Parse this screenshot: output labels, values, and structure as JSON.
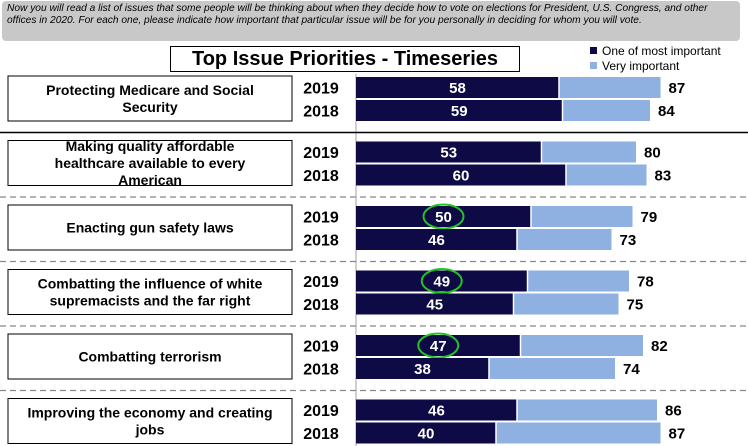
{
  "question_text": "Now you will read a list of issues that some people will be thinking about when they decide how to vote on elections for President, U.S. Congress, and other offices in 2020. For each one, please indicate how important that particular issue will be for you personally in deciding for whom you will vote.",
  "colors": {
    "most_important": "#0d0a45",
    "very_important": "#8eb1e2",
    "highlight": "#22c322"
  },
  "chart_data": {
    "type": "bar",
    "title": "Top Issue Priorities - Timeseries",
    "legend": [
      "One of most important",
      "Very important"
    ],
    "legend_position": "top-right",
    "series": [
      {
        "name": "One of most important",
        "key": "most"
      },
      {
        "name": "Very important",
        "key": "very"
      }
    ],
    "xlim": [
      0,
      100
    ],
    "groups": [
      {
        "issue": "Protecting Medicare and Social Security",
        "rows": [
          {
            "year": "2019",
            "most": 58,
            "very": 87,
            "highlight": false
          },
          {
            "year": "2018",
            "most": 59,
            "very": 84,
            "highlight": false
          }
        ]
      },
      {
        "issue": "Making quality affordable healthcare available to every American",
        "rows": [
          {
            "year": "2019",
            "most": 53,
            "very": 80,
            "highlight": false
          },
          {
            "year": "2018",
            "most": 60,
            "very": 83,
            "highlight": false
          }
        ]
      },
      {
        "issue": "Enacting gun safety laws",
        "rows": [
          {
            "year": "2019",
            "most": 50,
            "very": 79,
            "highlight": true
          },
          {
            "year": "2018",
            "most": 46,
            "very": 73,
            "highlight": false
          }
        ]
      },
      {
        "issue": "Combatting the influence of white supremacists and the far right",
        "rows": [
          {
            "year": "2019",
            "most": 49,
            "very": 78,
            "highlight": true
          },
          {
            "year": "2018",
            "most": 45,
            "very": 75,
            "highlight": false
          }
        ]
      },
      {
        "issue": "Combatting terrorism",
        "rows": [
          {
            "year": "2019",
            "most": 47,
            "very": 82,
            "highlight": true
          },
          {
            "year": "2018",
            "most": 38,
            "very": 74,
            "highlight": false
          }
        ]
      },
      {
        "issue": "Improving the economy and creating jobs",
        "rows": [
          {
            "year": "2019",
            "most": 46,
            "very": 86,
            "highlight": false
          },
          {
            "year": "2018",
            "most": 40,
            "very": 87,
            "highlight": false
          }
        ]
      }
    ]
  }
}
